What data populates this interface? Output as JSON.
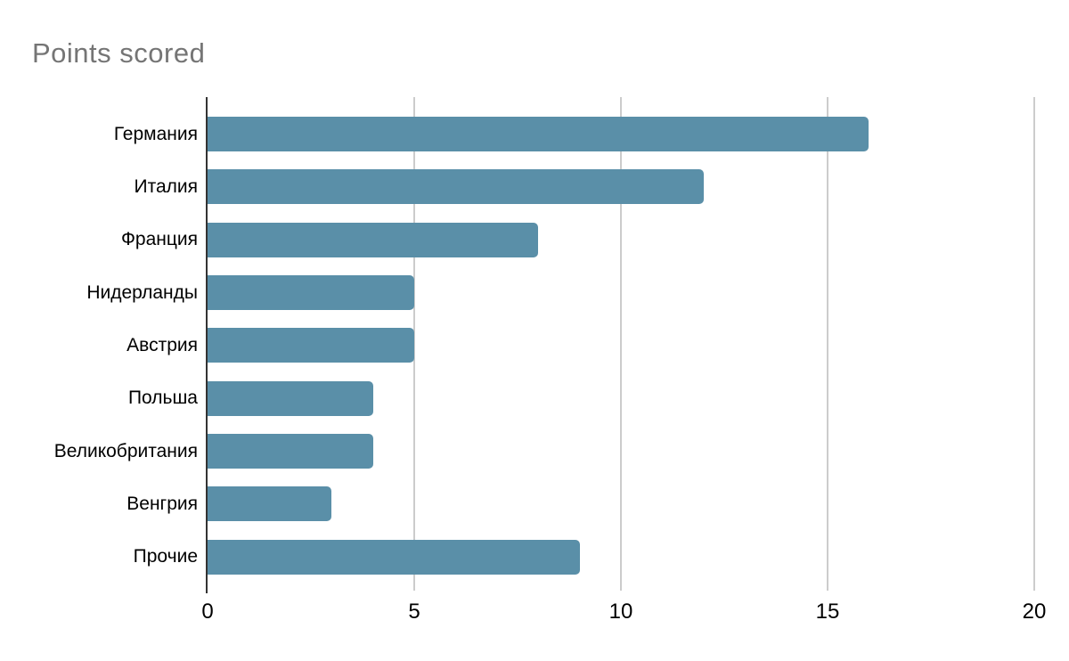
{
  "title": "Points scored",
  "colors": {
    "bar": "#5A8FA8",
    "gridline": "#cccccc",
    "axis_line": "#333333",
    "title_text": "#757575",
    "label_text": "#000000"
  },
  "chart_data": {
    "type": "bar",
    "orientation": "horizontal",
    "title": "Points scored",
    "categories": [
      "Германия",
      "Италия",
      "Франция",
      "Нидерланды",
      "Австрия",
      "Польша",
      "Великобритания",
      "Венгрия",
      "Прочие"
    ],
    "values": [
      16,
      12,
      8,
      5,
      5,
      4,
      4,
      3,
      9
    ],
    "xlabel": "",
    "ylabel": "",
    "xlim": [
      0,
      20
    ],
    "xticks": [
      0,
      5,
      10,
      15,
      20
    ],
    "grid": true,
    "legend": false
  }
}
